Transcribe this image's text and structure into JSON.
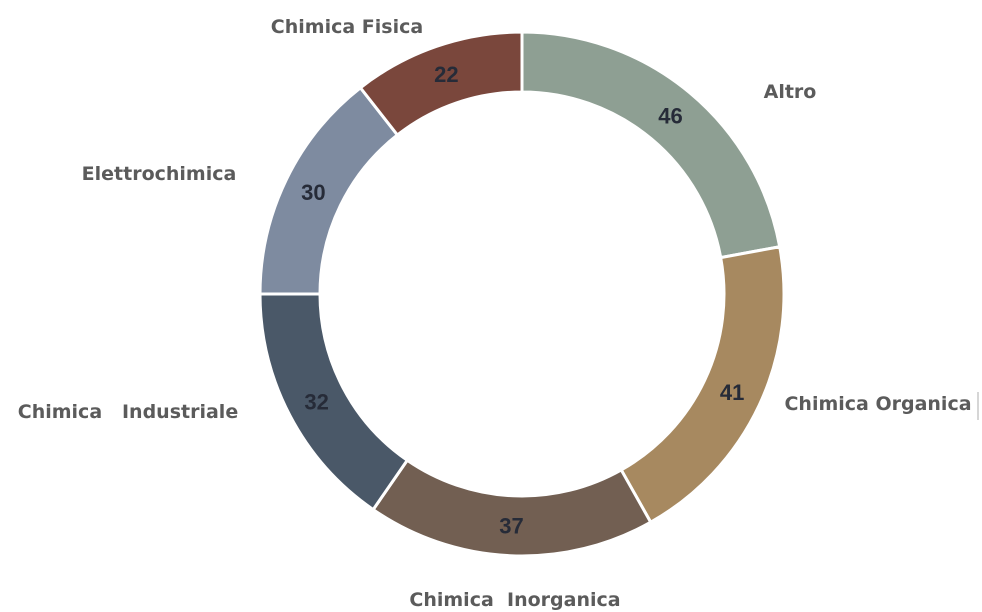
{
  "chart_data": {
    "type": "pie",
    "style": "donut",
    "title": "",
    "slices": [
      {
        "label": "Altro",
        "value": 46,
        "color": "#8e9f93"
      },
      {
        "label": "Chimica Organica",
        "value": 41,
        "color": "#a78960"
      },
      {
        "label": "Chimica  Inorganica",
        "value": 37,
        "color": "#725f52"
      },
      {
        "label": "Chimica   Industriale",
        "value": 32,
        "color": "#4a5868"
      },
      {
        "label": "Elettrochimica",
        "value": 30,
        "color": "#7e8ba0"
      },
      {
        "label": "Chimica Fisica",
        "value": 22,
        "color": "#7a473c"
      }
    ],
    "legend": "none",
    "data_labels": "inside"
  }
}
